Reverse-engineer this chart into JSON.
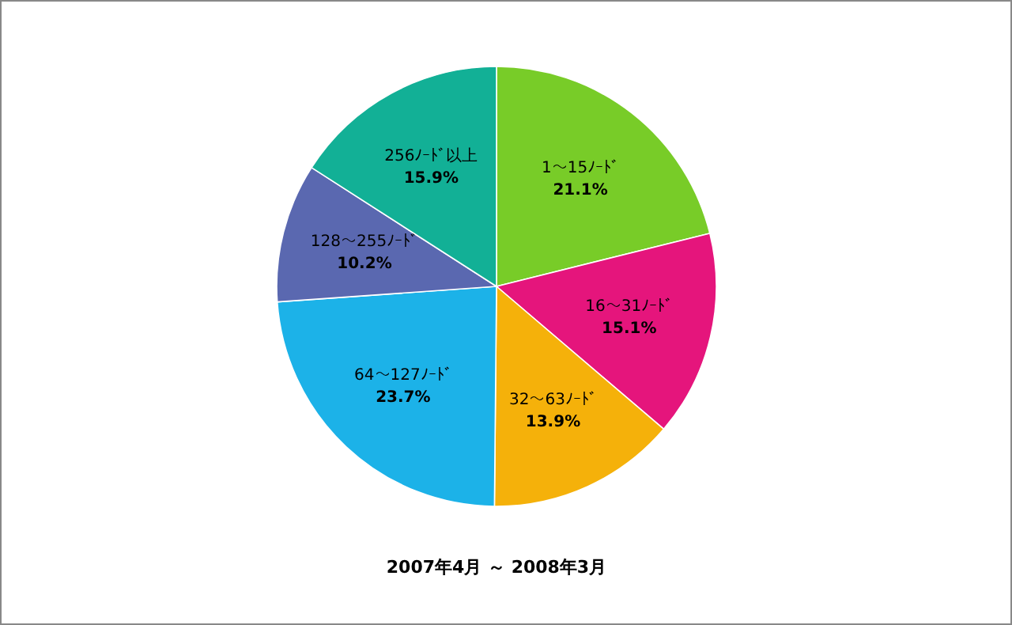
{
  "chart_data": {
    "type": "pie",
    "title": "2007年4月 ～ 2008年3月",
    "categories": [
      "1～15ﾉｰﾄﾞ",
      "16～31ﾉｰﾄﾞ",
      "32～63ﾉｰﾄﾞ",
      "64～127ﾉｰﾄﾞ",
      "128～255ﾉｰﾄﾞ",
      "256ﾉｰﾄﾞ以上"
    ],
    "values": [
      21.1,
      15.1,
      13.9,
      23.7,
      10.2,
      15.9
    ],
    "value_labels": [
      "21.1%",
      "15.1%",
      "13.9%",
      "23.7%",
      "10.2%",
      "15.9%"
    ],
    "colors": [
      "#78cc28",
      "#e5157c",
      "#f5b10a",
      "#1cb2e8",
      "#5a68b0",
      "#12b096"
    ]
  }
}
